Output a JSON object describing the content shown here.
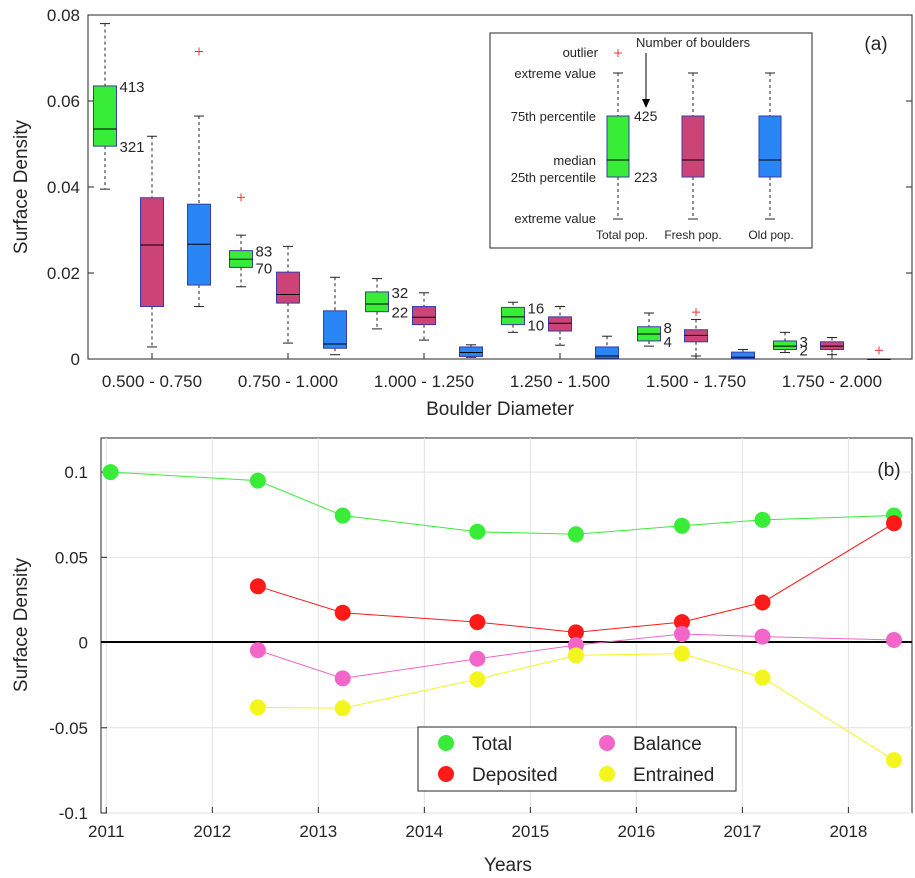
{
  "colors": {
    "total": "#38ec38",
    "fresh": "#cc4477",
    "old": "#2a86f5",
    "deposited": "#ff1a1a",
    "balance": "#f266c9",
    "entrained": "#f5f51e",
    "outlier": "#ee3333",
    "box_edge": "#3a3aa8",
    "zero_line": "#000000",
    "grid": "#e2e2e2"
  },
  "chart_data": [
    {
      "type": "box",
      "panel_label": "(a)",
      "xlabel": "Boulder Diameter",
      "ylabel": "Surface Density",
      "ylim": [
        0,
        0.08
      ],
      "yticks": [
        0,
        0.02,
        0.04,
        0.06,
        0.08
      ],
      "ytick_labels": [
        "0",
        "0.02",
        "0.04",
        "0.06",
        "0.08"
      ],
      "grid": false,
      "categories": [
        "0.500 - 0.750",
        "0.750 - 1.000",
        "1.000 - 1.250",
        "1.250 - 1.500",
        "1.500 - 1.750",
        "1.750 - 2.000"
      ],
      "series": [
        {
          "name": "Total pop.",
          "color_key": "total",
          "offset": -1,
          "boxes": [
            {
              "whisker_low": 0.0395,
              "q1": 0.0495,
              "median": 0.0535,
              "q3": 0.0635,
              "whisker_high": 0.078,
              "outliers": [],
              "labels": [
                "413",
                "321"
              ]
            },
            {
              "whisker_low": 0.0168,
              "q1": 0.0213,
              "median": 0.0232,
              "q3": 0.0252,
              "whisker_high": 0.0288,
              "outliers": [
                0.0376
              ],
              "labels": [
                "83",
                "70"
              ]
            },
            {
              "whisker_low": 0.007,
              "q1": 0.011,
              "median": 0.0128,
              "q3": 0.0156,
              "whisker_high": 0.0187,
              "outliers": [],
              "labels": [
                "32",
                "22"
              ]
            },
            {
              "whisker_low": 0.0062,
              "q1": 0.008,
              "median": 0.0098,
              "q3": 0.012,
              "whisker_high": 0.0132,
              "outliers": [],
              "labels": [
                "16",
                "10"
              ]
            },
            {
              "whisker_low": 0.003,
              "q1": 0.0042,
              "median": 0.0058,
              "q3": 0.0075,
              "whisker_high": 0.0107,
              "outliers": [],
              "labels": [
                "8",
                "4"
              ]
            },
            {
              "whisker_low": 0.0015,
              "q1": 0.0022,
              "median": 0.003,
              "q3": 0.0042,
              "whisker_high": 0.0062,
              "outliers": [],
              "labels": [
                "3",
                "2"
              ]
            }
          ]
        },
        {
          "name": "Fresh pop.",
          "color_key": "fresh",
          "offset": 0,
          "boxes": [
            {
              "whisker_low": 0.0028,
              "q1": 0.0122,
              "median": 0.0265,
              "q3": 0.0375,
              "whisker_high": 0.0518,
              "outliers": []
            },
            {
              "whisker_low": 0.0037,
              "q1": 0.013,
              "median": 0.015,
              "q3": 0.0202,
              "whisker_high": 0.0262,
              "outliers": []
            },
            {
              "whisker_low": 0.0044,
              "q1": 0.008,
              "median": 0.0097,
              "q3": 0.0122,
              "whisker_high": 0.0154,
              "outliers": []
            },
            {
              "whisker_low": 0.0032,
              "q1": 0.0065,
              "median": 0.0083,
              "q3": 0.0098,
              "whisker_high": 0.0122,
              "outliers": []
            },
            {
              "whisker_low": 0.0007,
              "q1": 0.004,
              "median": 0.0055,
              "q3": 0.0068,
              "whisker_high": 0.0092,
              "outliers": [
                0.0109
              ]
            },
            {
              "whisker_low": 0.001,
              "q1": 0.0022,
              "median": 0.003,
              "q3": 0.004,
              "whisker_high": 0.005,
              "outliers": []
            }
          ]
        },
        {
          "name": "Old pop.",
          "color_key": "old",
          "offset": 1,
          "boxes": [
            {
              "whisker_low": 0.0122,
              "q1": 0.0172,
              "median": 0.0267,
              "q3": 0.036,
              "whisker_high": 0.0565,
              "outliers": [
                0.0715
              ]
            },
            {
              "whisker_low": 0.001,
              "q1": 0.0025,
              "median": 0.0035,
              "q3": 0.0112,
              "whisker_high": 0.019,
              "outliers": []
            },
            {
              "whisker_low": 0.0004,
              "q1": 0.0006,
              "median": 0.0015,
              "q3": 0.0028,
              "whisker_high": 0.0033,
              "outliers": []
            },
            {
              "whisker_low": 0.0001,
              "q1": 0.0002,
              "median": 0.0007,
              "q3": 0.0028,
              "whisker_high": 0.0053,
              "outliers": []
            },
            {
              "whisker_low": 0.0001,
              "q1": 0.0001,
              "median": 0.0004,
              "q3": 0.0016,
              "whisker_high": 0.0022,
              "outliers": []
            },
            {
              "whisker_low": 0.0,
              "q1": 0.0,
              "median": 0.0,
              "q3": 0.0,
              "whisker_high": 0.0,
              "outliers": [
                0.002
              ]
            }
          ]
        }
      ],
      "inset_legend": {
        "outlier": "outlier",
        "number_of_boulders": "Number of boulders",
        "extreme_value_top": "extreme value",
        "percentile_75": "75th percentile",
        "median": "median",
        "percentile_25": "25th percentile",
        "extreme_value_bottom": "extreme value",
        "count_top": "425",
        "count_bottom": "223",
        "labels": [
          "Total pop.",
          "Fresh pop.",
          "Old pop."
        ]
      }
    },
    {
      "type": "line",
      "panel_label": "(b)",
      "xlabel": "Years",
      "ylabel": "Surface Density",
      "xlim": [
        2010.95,
        2018.6
      ],
      "ylim": [
        -0.1,
        0.12
      ],
      "xticks": [
        2011,
        2012,
        2013,
        2014,
        2015,
        2016,
        2017,
        2018
      ],
      "xtick_labels": [
        "2011",
        "2012",
        "2013",
        "2014",
        "2015",
        "2016",
        "2017",
        "2018"
      ],
      "yticks": [
        -0.1,
        -0.05,
        0,
        0.05,
        0.1
      ],
      "ytick_labels": [
        "-0.1",
        "-0.05",
        "0",
        "0.05",
        "0.1"
      ],
      "grid": true,
      "legend_position": "bottom-center",
      "series": [
        {
          "name": "Total",
          "color_key": "total",
          "x": [
            2011.04,
            2012.43,
            2013.23,
            2014.5,
            2015.43,
            2016.43,
            2017.19,
            2018.43
          ],
          "y": [
            0.1,
            0.095,
            0.0745,
            0.065,
            0.0635,
            0.0685,
            0.072,
            0.0745
          ]
        },
        {
          "name": "Deposited",
          "color_key": "deposited",
          "x": [
            2012.43,
            2013.23,
            2014.5,
            2015.43,
            2016.43,
            2017.19,
            2018.43
          ],
          "y": [
            0.033,
            0.0175,
            0.012,
            0.006,
            0.012,
            0.0235,
            0.07
          ]
        },
        {
          "name": "Balance",
          "color_key": "balance",
          "x": [
            2012.43,
            2013.23,
            2014.5,
            2015.43,
            2016.43,
            2017.19,
            2018.43
          ],
          "y": [
            -0.0045,
            -0.021,
            -0.0095,
            -0.0015,
            0.005,
            0.0035,
            0.0015
          ]
        },
        {
          "name": "Entrained",
          "color_key": "entrained",
          "x": [
            2012.43,
            2013.23,
            2014.5,
            2015.43,
            2016.43,
            2017.19,
            2018.43
          ],
          "y": [
            -0.038,
            -0.0385,
            -0.0215,
            -0.0075,
            -0.0065,
            -0.0205,
            -0.069
          ]
        }
      ]
    }
  ]
}
